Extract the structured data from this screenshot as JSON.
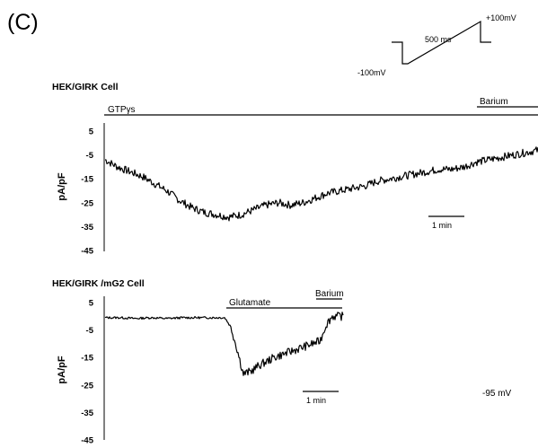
{
  "panel_label": "(C)",
  "protocol": {
    "start_voltage": "-100mV",
    "end_voltage": "+100mV",
    "duration": "500 ms"
  },
  "holding_potential": "-95 mV",
  "chart_data": [
    {
      "type": "line",
      "title": "HEK/GIRK  Cell",
      "ylabel": "pA/pF",
      "yticks": [
        5,
        -5,
        -15,
        -25,
        -35,
        -45
      ],
      "ylim": [
        -45,
        8
      ],
      "scale_bar": "1 min",
      "bars": [
        {
          "label": "GTPγs",
          "start_min": 0,
          "end_min": 35
        },
        {
          "label": "Barium",
          "start_min": 30.3,
          "end_min": 35
        }
      ],
      "series": [
        {
          "x_min": [
            0,
            1,
            2,
            3,
            4,
            5,
            6,
            7,
            8,
            9,
            10,
            11,
            12,
            13,
            14,
            15,
            16,
            17,
            18,
            19,
            20,
            21,
            22,
            23,
            24,
            25,
            26,
            27,
            28,
            29,
            30,
            31,
            32,
            33,
            34,
            35
          ],
          "values": [
            -7,
            -10,
            -12,
            -14,
            -17,
            -20,
            -24,
            -27,
            -29,
            -30,
            -31,
            -30,
            -28,
            -26,
            -25,
            -26,
            -25,
            -23,
            -21,
            -20,
            -19,
            -18,
            -16,
            -15,
            -14,
            -13,
            -12,
            -11,
            -11,
            -10,
            -8,
            -7,
            -6,
            -5,
            -4,
            -3
          ]
        }
      ]
    },
    {
      "type": "line",
      "title": "HEK/GIRK /mG2 Cell",
      "ylabel": "pA/pF",
      "yticks": [
        5,
        -5,
        -15,
        -25,
        -35,
        -45
      ],
      "ylim": [
        -45,
        8
      ],
      "scale_bar": "1 min",
      "bars": [
        {
          "label": "Glutamate",
          "start_min": 8,
          "end_min": 15.5
        },
        {
          "label": "Barium",
          "start_min": 14.3,
          "end_min": 15.5
        }
      ],
      "series": [
        {
          "x_min": [
            0,
            1,
            2,
            3,
            4,
            5,
            6,
            7,
            7.8,
            8.2,
            8.6,
            9,
            9.5,
            10,
            11,
            12,
            13,
            14,
            14.4,
            14.8,
            15.5
          ],
          "values": [
            -0.5,
            -0.5,
            -0.8,
            -0.5,
            -0.8,
            -0.5,
            -0.5,
            -0.5,
            -0.5,
            -4,
            -12,
            -21,
            -20,
            -18,
            -15,
            -13,
            -11,
            -9,
            -3,
            0,
            0
          ]
        }
      ]
    }
  ]
}
